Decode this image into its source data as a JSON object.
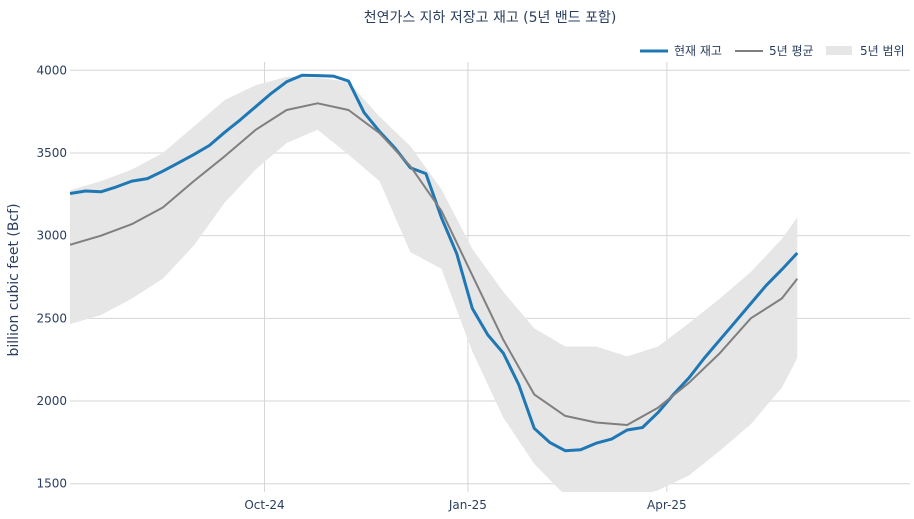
{
  "chart_data": {
    "type": "line",
    "title": "천연가스 지하 저장고 재고 (5년 밴드 포함)",
    "ylabel": "billion cubic feet (Bcf)",
    "xlabel": "",
    "ylim": [
      1450,
      4050
    ],
    "xlim": [
      "2024-07-05",
      "2025-07-20"
    ],
    "y_ticks": [
      1500,
      2000,
      2500,
      3000,
      3500,
      4000
    ],
    "x_ticks": [
      {
        "date": "2024-10-01",
        "label": "Oct-24"
      },
      {
        "date": "2025-01-01",
        "label": "Jan-25"
      },
      {
        "date": "2025-04-01",
        "label": "Apr-25"
      }
    ],
    "grid": true,
    "legend_position": "top-right",
    "colors": {
      "current": "#1f77b4",
      "avg": "#7f7f7f",
      "band": "#e6e6e6"
    },
    "series": [
      {
        "name": "현재 재고",
        "role": "current",
        "points": [
          [
            "2024-07-05",
            3255
          ],
          [
            "2024-07-12",
            3270
          ],
          [
            "2024-07-19",
            3265
          ],
          [
            "2024-07-26",
            3295
          ],
          [
            "2024-08-02",
            3330
          ],
          [
            "2024-08-09",
            3345
          ],
          [
            "2024-08-16",
            3390
          ],
          [
            "2024-08-23",
            3440
          ],
          [
            "2024-08-30",
            3490
          ],
          [
            "2024-09-06",
            3545
          ],
          [
            "2024-09-13",
            3625
          ],
          [
            "2024-09-20",
            3700
          ],
          [
            "2024-09-27",
            3780
          ],
          [
            "2024-10-04",
            3860
          ],
          [
            "2024-10-11",
            3930
          ],
          [
            "2024-10-18",
            3970
          ],
          [
            "2024-10-25",
            3968
          ],
          [
            "2024-11-01",
            3965
          ],
          [
            "2024-11-08",
            3935
          ],
          [
            "2024-11-15",
            3745
          ],
          [
            "2024-11-22",
            3630
          ],
          [
            "2024-11-29",
            3530
          ],
          [
            "2024-12-06",
            3410
          ],
          [
            "2024-12-13",
            3375
          ],
          [
            "2024-12-20",
            3110
          ],
          [
            "2024-12-27",
            2890
          ],
          [
            "2025-01-03",
            2560
          ],
          [
            "2025-01-10",
            2400
          ],
          [
            "2025-01-17",
            2290
          ],
          [
            "2025-01-24",
            2100
          ],
          [
            "2025-01-31",
            1835
          ],
          [
            "2025-02-07",
            1750
          ],
          [
            "2025-02-14",
            1700
          ],
          [
            "2025-02-21",
            1705
          ],
          [
            "2025-02-28",
            1745
          ],
          [
            "2025-03-07",
            1770
          ],
          [
            "2025-03-14",
            1825
          ],
          [
            "2025-03-21",
            1840
          ],
          [
            "2025-03-28",
            1930
          ],
          [
            "2025-04-04",
            2040
          ],
          [
            "2025-04-11",
            2140
          ],
          [
            "2025-04-18",
            2260
          ],
          [
            "2025-04-25",
            2370
          ],
          [
            "2025-05-02",
            2480
          ],
          [
            "2025-05-09",
            2590
          ],
          [
            "2025-05-16",
            2700
          ],
          [
            "2025-05-23",
            2795
          ],
          [
            "2025-05-30",
            2895
          ]
        ]
      },
      {
        "name": "5년 평균",
        "role": "avg",
        "points": [
          [
            "2024-07-05",
            2945
          ],
          [
            "2024-07-19",
            3000
          ],
          [
            "2024-08-02",
            3070
          ],
          [
            "2024-08-16",
            3170
          ],
          [
            "2024-08-30",
            3330
          ],
          [
            "2024-09-13",
            3480
          ],
          [
            "2024-09-27",
            3640
          ],
          [
            "2024-10-11",
            3760
          ],
          [
            "2024-10-25",
            3800
          ],
          [
            "2024-11-08",
            3760
          ],
          [
            "2024-11-22",
            3620
          ],
          [
            "2024-12-06",
            3420
          ],
          [
            "2024-12-20",
            3150
          ],
          [
            "2025-01-03",
            2760
          ],
          [
            "2025-01-17",
            2370
          ],
          [
            "2025-01-31",
            2040
          ],
          [
            "2025-02-14",
            1910
          ],
          [
            "2025-02-28",
            1870
          ],
          [
            "2025-03-14",
            1855
          ],
          [
            "2025-03-28",
            1960
          ],
          [
            "2025-04-11",
            2110
          ],
          [
            "2025-04-25",
            2290
          ],
          [
            "2025-05-09",
            2500
          ],
          [
            "2025-05-23",
            2620
          ],
          [
            "2025-05-30",
            2740
          ]
        ]
      }
    ],
    "band": {
      "name": "5년 범위",
      "role": "band",
      "upper": [
        [
          "2024-07-05",
          3275
        ],
        [
          "2024-07-19",
          3330
        ],
        [
          "2024-08-02",
          3400
        ],
        [
          "2024-08-16",
          3500
        ],
        [
          "2024-08-30",
          3660
        ],
        [
          "2024-09-13",
          3820
        ],
        [
          "2024-09-27",
          3910
        ],
        [
          "2024-10-11",
          3960
        ],
        [
          "2024-10-25",
          3955
        ],
        [
          "2024-11-08",
          3930
        ],
        [
          "2024-11-22",
          3720
        ],
        [
          "2024-12-06",
          3540
        ],
        [
          "2024-12-20",
          3280
        ],
        [
          "2025-01-03",
          2920
        ],
        [
          "2025-01-17",
          2660
        ],
        [
          "2025-01-31",
          2440
        ],
        [
          "2025-02-14",
          2330
        ],
        [
          "2025-02-28",
          2330
        ],
        [
          "2025-03-14",
          2270
        ],
        [
          "2025-03-28",
          2330
        ],
        [
          "2025-04-11",
          2470
        ],
        [
          "2025-04-25",
          2620
        ],
        [
          "2025-05-09",
          2780
        ],
        [
          "2025-05-23",
          2980
        ],
        [
          "2025-05-30",
          3110
        ]
      ],
      "lower": [
        [
          "2024-07-05",
          2465
        ],
        [
          "2024-07-19",
          2520
        ],
        [
          "2024-08-02",
          2620
        ],
        [
          "2024-08-16",
          2740
        ],
        [
          "2024-08-30",
          2940
        ],
        [
          "2024-09-13",
          3200
        ],
        [
          "2024-09-27",
          3400
        ],
        [
          "2024-10-11",
          3560
        ],
        [
          "2024-10-25",
          3640
        ],
        [
          "2024-11-08",
          3490
        ],
        [
          "2024-11-22",
          3330
        ],
        [
          "2024-12-06",
          2900
        ],
        [
          "2024-12-20",
          2800
        ],
        [
          "2025-01-03",
          2300
        ],
        [
          "2025-01-17",
          1900
        ],
        [
          "2025-01-31",
          1620
        ],
        [
          "2025-02-14",
          1430
        ],
        [
          "2025-02-28",
          1400
        ],
        [
          "2025-03-14",
          1405
        ],
        [
          "2025-03-28",
          1460
        ],
        [
          "2025-04-11",
          1550
        ],
        [
          "2025-04-25",
          1700
        ],
        [
          "2025-05-09",
          1860
        ],
        [
          "2025-05-23",
          2080
        ],
        [
          "2025-05-30",
          2260
        ]
      ]
    }
  }
}
